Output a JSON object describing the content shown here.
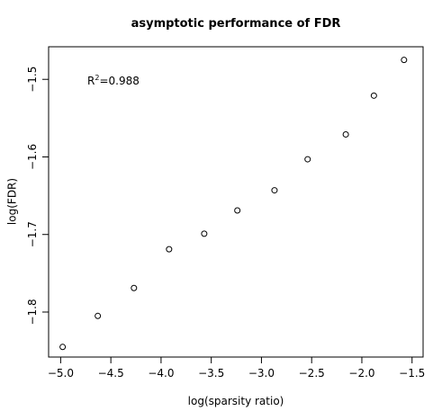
{
  "chart_data": {
    "type": "scatter",
    "title": "asymptotic performance of FDR",
    "x_label": "log(sparsity ratio)",
    "y_label": "log(FDR)",
    "annotation": [
      "R",
      "2",
      "=0.988"
    ],
    "x": [
      -4.98,
      -4.63,
      -4.27,
      -3.92,
      -3.57,
      -3.24,
      -2.87,
      -2.54,
      -2.16,
      -1.88,
      -1.58
    ],
    "values": [
      -1.845,
      -1.805,
      -1.769,
      -1.719,
      -1.699,
      -1.669,
      -1.643,
      -1.603,
      -1.571,
      -1.521,
      -1.475
    ],
    "color": "#000000",
    "xlim": [
      -5.12,
      -1.39
    ],
    "ylim": [
      -1.858,
      -1.458
    ],
    "xticks": [
      {
        "value": -5,
        "label": "−5.0"
      },
      {
        "value": -4.5,
        "label": "−4.5"
      },
      {
        "value": -4,
        "label": "−4.0"
      },
      {
        "value": -3.5,
        "label": "−3.5"
      },
      {
        "value": -3,
        "label": "−3.0"
      },
      {
        "value": -2.5,
        "label": "−2.5"
      },
      {
        "value": -2,
        "label": "−2.0"
      },
      {
        "value": -1.5,
        "label": "−1.5"
      }
    ],
    "yticks": [
      {
        "value": -1.8,
        "label": "−1.8"
      },
      {
        "value": -1.7,
        "label": "−1.7"
      },
      {
        "value": -1.6,
        "label": "−1.6"
      },
      {
        "value": -1.5,
        "label": "−1.5"
      }
    ]
  }
}
